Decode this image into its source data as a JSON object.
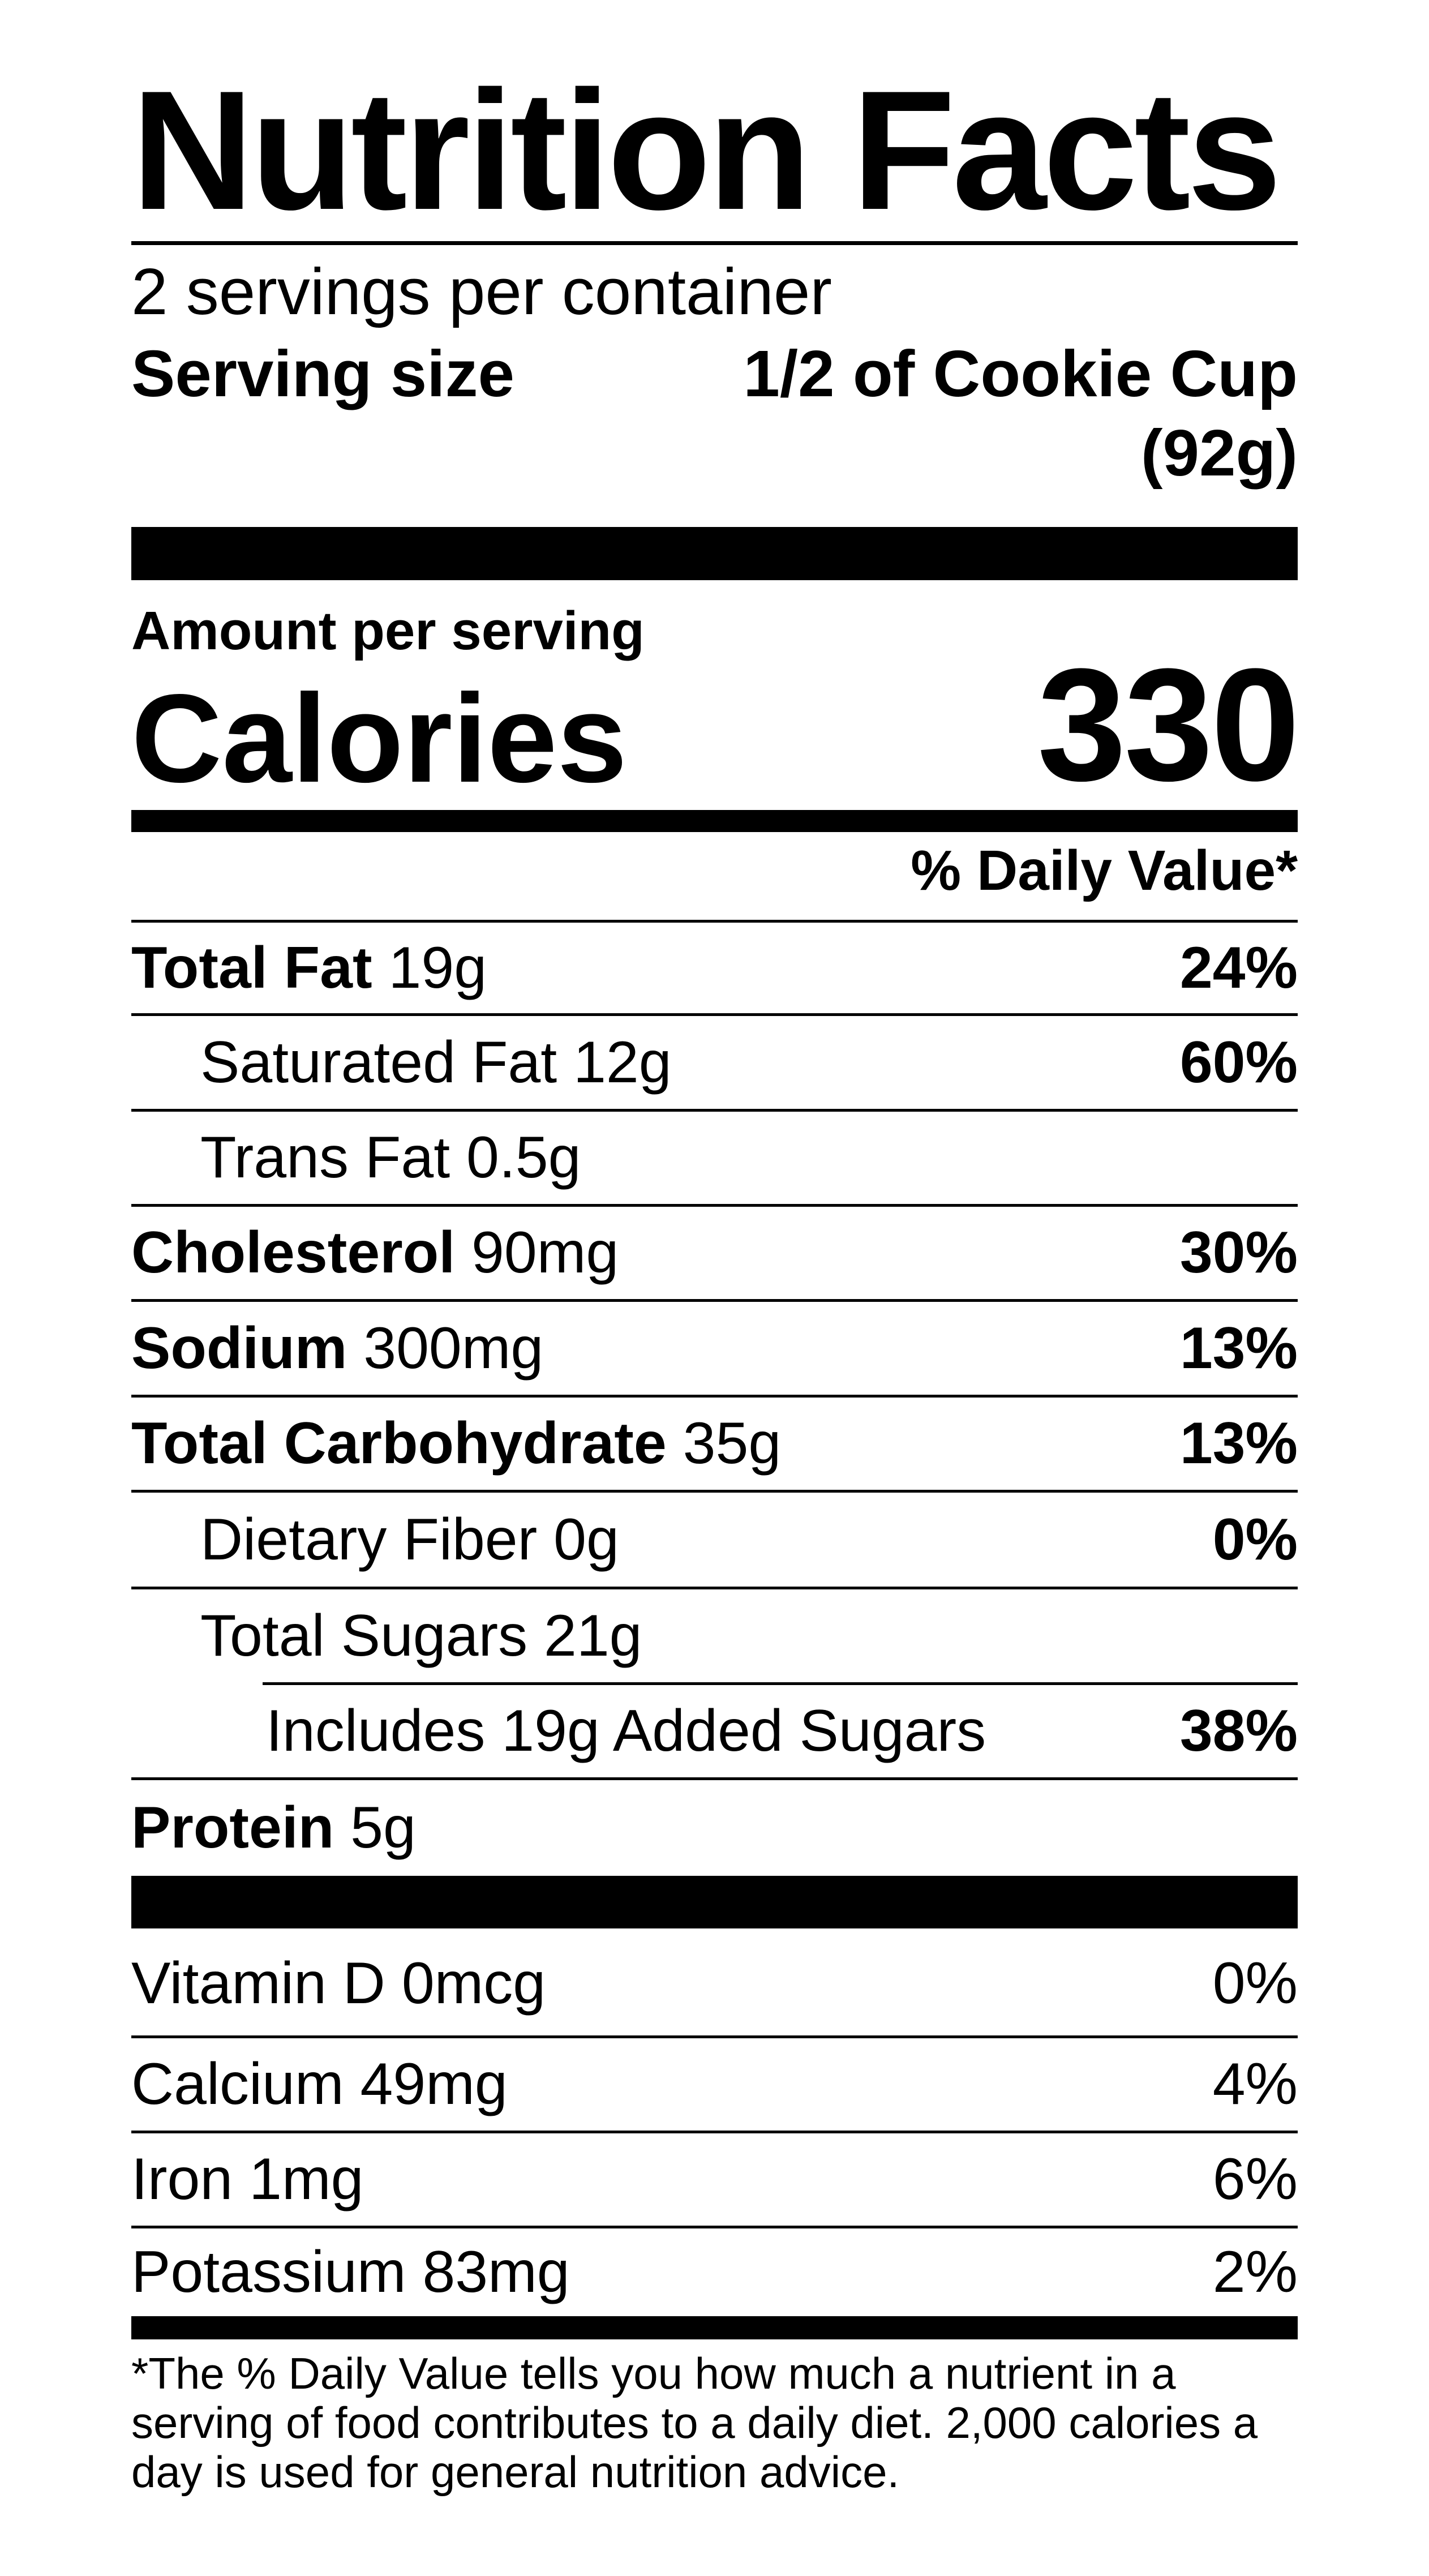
{
  "title": "Nutrition Facts",
  "servings_per_container": "2 servings per container",
  "serving_size": {
    "label": "Serving size",
    "value": "1/2 of Cookie Cup",
    "weight": "(92g)"
  },
  "amount_per_serving": "Amount per serving",
  "calories": {
    "label": "Calories",
    "value": "330"
  },
  "daily_value_header": "% Daily Value*",
  "nutrients": [
    {
      "name": "Total Fat",
      "amount": "19g",
      "dv": "24%",
      "bold": true,
      "indent": 0
    },
    {
      "name": "Saturated Fat",
      "amount": "12g",
      "dv": "60%",
      "bold": false,
      "indent": 1
    },
    {
      "name": "Trans Fat",
      "amount": "0.5g",
      "dv": "",
      "bold": false,
      "indent": 1
    },
    {
      "name": "Cholesterol",
      "amount": "90mg",
      "dv": "30%",
      "bold": true,
      "indent": 0
    },
    {
      "name": "Sodium",
      "amount": "300mg",
      "dv": "13%",
      "bold": true,
      "indent": 0
    },
    {
      "name": "Total Carbohydrate",
      "amount": "35g",
      "dv": "13%",
      "bold": true,
      "indent": 0
    },
    {
      "name": "Dietary Fiber",
      "amount": "0g",
      "dv": "0%",
      "bold": false,
      "indent": 1
    },
    {
      "name": "Total Sugars",
      "amount": "21g",
      "dv": "",
      "bold": false,
      "indent": 1
    },
    {
      "name": "Includes 19g Added Sugars",
      "amount": "",
      "dv": "38%",
      "bold": false,
      "indent": 2
    },
    {
      "name": "Protein",
      "amount": "5g",
      "dv": "",
      "bold": true,
      "indent": 0
    }
  ],
  "vitamins": [
    {
      "name": "Vitamin D",
      "amount": "0mcg",
      "dv": "0%"
    },
    {
      "name": "Calcium",
      "amount": "49mg",
      "dv": "4%"
    },
    {
      "name": "Iron",
      "amount": "1mg",
      "dv": "6%"
    },
    {
      "name": "Potassium",
      "amount": "83mg",
      "dv": "2%"
    }
  ],
  "footnote": "*The % Daily Value tells you how much a nutrient in a serving of food contributes to a daily diet. 2,000 calories a day is used for general nutrition advice."
}
